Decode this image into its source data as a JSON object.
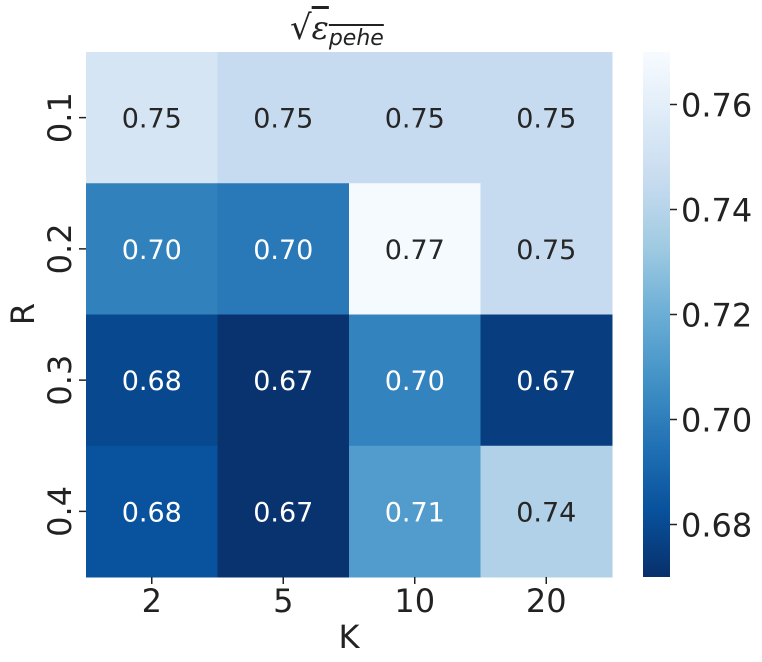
{
  "chart_data": {
    "type": "heatmap",
    "title_symbol": "ε",
    "title_subscript": "pehe",
    "xlabel": "K",
    "ylabel": "R",
    "x_categories": [
      "2",
      "5",
      "10",
      "20"
    ],
    "y_categories": [
      "0.1",
      "0.2",
      "0.3",
      "0.4"
    ],
    "values": [
      [
        0.753,
        0.745,
        0.745,
        0.745
      ],
      [
        0.701,
        0.698,
        0.769,
        0.745
      ],
      [
        0.679,
        0.671,
        0.702,
        0.675
      ],
      [
        0.683,
        0.671,
        0.712,
        0.738
      ]
    ],
    "labels": [
      [
        "0.75",
        "0.75",
        "0.75",
        "0.75"
      ],
      [
        "0.70",
        "0.70",
        "0.77",
        "0.75"
      ],
      [
        "0.68",
        "0.67",
        "0.70",
        "0.67"
      ],
      [
        "0.68",
        "0.67",
        "0.71",
        "0.74"
      ]
    ],
    "colormap": "Blues_r",
    "vmin": 0.67,
    "vmax": 0.77,
    "colorbar_ticks": [
      "0.68",
      "0.70",
      "0.72",
      "0.74",
      "0.76"
    ],
    "colorbar_tick_values": [
      0.68,
      0.7,
      0.72,
      0.74,
      0.76
    ],
    "light_text_color": "#ffffff",
    "dark_text_color": "#262626"
  }
}
